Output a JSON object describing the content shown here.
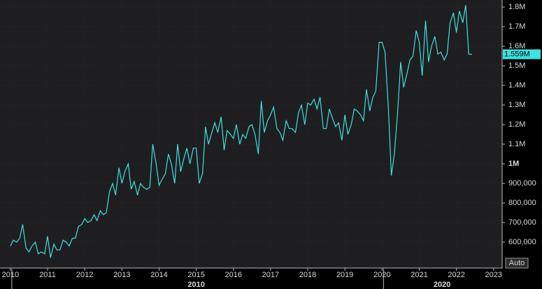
{
  "chart_data": {
    "type": "line",
    "x": [
      2010.0,
      2010.08,
      2010.17,
      2010.25,
      2010.33,
      2010.42,
      2010.5,
      2010.58,
      2010.67,
      2010.75,
      2010.83,
      2010.92,
      2011.0,
      2011.08,
      2011.17,
      2011.25,
      2011.33,
      2011.42,
      2011.5,
      2011.58,
      2011.67,
      2011.75,
      2011.83,
      2011.92,
      2012.0,
      2012.08,
      2012.17,
      2012.25,
      2012.33,
      2012.42,
      2012.5,
      2012.58,
      2012.67,
      2012.75,
      2012.83,
      2012.92,
      2013.0,
      2013.08,
      2013.17,
      2013.25,
      2013.33,
      2013.42,
      2013.5,
      2013.58,
      2013.67,
      2013.75,
      2013.83,
      2013.92,
      2014.0,
      2014.08,
      2014.17,
      2014.25,
      2014.33,
      2014.42,
      2014.5,
      2014.58,
      2014.67,
      2014.75,
      2014.83,
      2014.92,
      2015.0,
      2015.08,
      2015.17,
      2015.25,
      2015.33,
      2015.42,
      2015.5,
      2015.58,
      2015.67,
      2015.75,
      2015.83,
      2015.92,
      2016.0,
      2016.08,
      2016.17,
      2016.25,
      2016.33,
      2016.42,
      2016.5,
      2016.58,
      2016.67,
      2016.75,
      2016.83,
      2016.92,
      2017.0,
      2017.08,
      2017.17,
      2017.25,
      2017.33,
      2017.42,
      2017.5,
      2017.58,
      2017.67,
      2017.75,
      2017.83,
      2017.92,
      2018.0,
      2018.08,
      2018.17,
      2018.25,
      2018.33,
      2018.42,
      2018.5,
      2018.58,
      2018.67,
      2018.75,
      2018.83,
      2018.92,
      2019.0,
      2019.08,
      2019.17,
      2019.25,
      2019.33,
      2019.42,
      2019.5,
      2019.58,
      2019.67,
      2019.75,
      2019.83,
      2019.92,
      2020.0,
      2020.08,
      2020.17,
      2020.25,
      2020.33,
      2020.42,
      2020.5,
      2020.58,
      2020.67,
      2020.75,
      2020.83,
      2020.92,
      2021.0,
      2021.08,
      2021.17,
      2021.25,
      2021.33,
      2021.42,
      2021.5,
      2021.58,
      2021.67,
      2021.75,
      2021.83,
      2021.92,
      2022.0,
      2022.08,
      2022.17,
      2022.25,
      2022.33,
      2022.42
    ],
    "series": [
      {
        "color": "#3fe0e0",
        "values": [
          580000,
          610000,
          600000,
          620000,
          690000,
          570000,
          550000,
          580000,
          600000,
          540000,
          550000,
          540000,
          630000,
          520000,
          590000,
          560000,
          560000,
          610000,
          600000,
          580000,
          620000,
          620000,
          680000,
          690000,
          720000,
          700000,
          710000,
          740000,
          710000,
          760000,
          740000,
          750000,
          860000,
          900000,
          840000,
          980000,
          900000,
          960000,
          1000000,
          870000,
          910000,
          840000,
          900000,
          880000,
          870000,
          880000,
          1100000,
          1000000,
          890000,
          920000,
          950000,
          1050000,
          1000000,
          900000,
          1100000,
          960000,
          1030000,
          1080000,
          1000000,
          1080000,
          1080000,
          900000,
          950000,
          1190000,
          1100000,
          1160000,
          1210000,
          1160000,
          1240000,
          1070000,
          1170000,
          1150000,
          1130000,
          1200000,
          1100000,
          1150000,
          1130000,
          1190000,
          1200000,
          1150000,
          1050000,
          1320000,
          1160000,
          1220000,
          1250000,
          1290000,
          1180000,
          1160000,
          1120000,
          1220000,
          1180000,
          1180000,
          1160000,
          1260000,
          1300000,
          1200000,
          1310000,
          1300000,
          1330000,
          1280000,
          1340000,
          1180000,
          1180000,
          1280000,
          1230000,
          1190000,
          1210000,
          1120000,
          1250000,
          1150000,
          1200000,
          1280000,
          1270000,
          1250000,
          1220000,
          1380000,
          1270000,
          1340000,
          1370000,
          1620000,
          1620000,
          1570000,
          1280000,
          940000,
          1050000,
          1270000,
          1520000,
          1390000,
          1460000,
          1530000,
          1550000,
          1680000,
          1620000,
          1450000,
          1730000,
          1520000,
          1600000,
          1650000,
          1560000,
          1570000,
          1530000,
          1560000,
          1720000,
          1770000,
          1670000,
          1780000,
          1720000,
          1810000,
          1560000,
          1559000
        ],
        "last_value_label": "1.559M"
      }
    ],
    "xlim": [
      2009.72,
      2023.23
    ],
    "xticks": [
      2010,
      2011,
      2012,
      2013,
      2014,
      2015,
      2016,
      2017,
      2018,
      2019,
      2020,
      2021,
      2022,
      2023
    ],
    "decades": [
      2010,
      2020
    ],
    "ylim": [
      468000,
      1836000
    ],
    "yticks": [
      {
        "value": 600000,
        "label": "600,000"
      },
      {
        "value": 700000,
        "label": "700,000"
      },
      {
        "value": 800000,
        "label": "800,000"
      },
      {
        "value": 900000,
        "label": "900,000"
      },
      {
        "value": 1000000,
        "label": "1M"
      },
      {
        "value": 1100000,
        "label": "1.1M"
      },
      {
        "value": 1200000,
        "label": "1.2M"
      },
      {
        "value": 1300000,
        "label": "1.3M"
      },
      {
        "value": 1400000,
        "label": "1.4M"
      },
      {
        "value": 1500000,
        "label": "1.5M"
      },
      {
        "value": 1600000,
        "label": "1.6M"
      },
      {
        "value": 1700000,
        "label": "1.7M"
      },
      {
        "value": 1800000,
        "label": "1.8M"
      }
    ],
    "grid": true,
    "scale_button": "Auto"
  }
}
